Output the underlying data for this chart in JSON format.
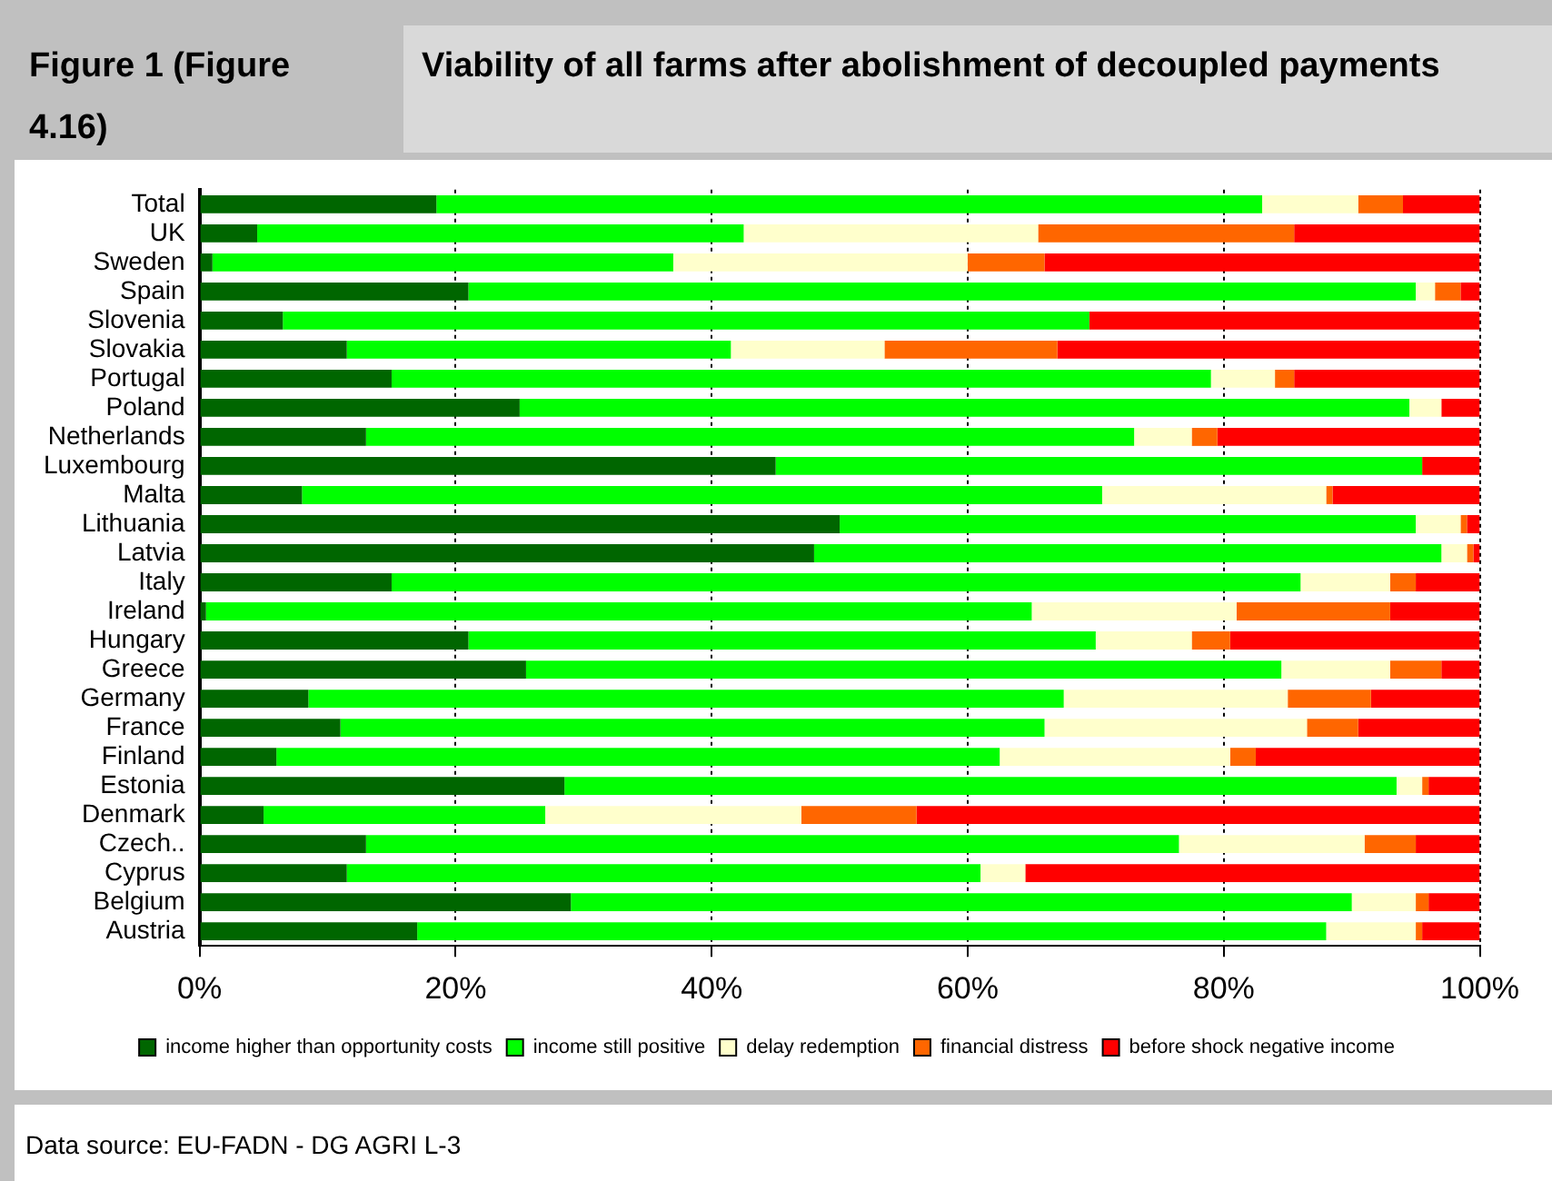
{
  "chart_data": {
    "type": "bar",
    "orientation": "horizontal",
    "stacked": true,
    "title": "Viability of all farms after abolishment of decoupled payments",
    "subtitle": "Figure 1 (Figure 4.16)",
    "annotations": [
      "Data source: EU-FADN - DG AGRI L-3"
    ],
    "categories": [
      "Total",
      "UK",
      "Sweden",
      "Spain",
      "Slovenia",
      "Slovakia",
      "Portugal",
      "Poland",
      "Netherlands",
      "Luxembourg",
      "Malta",
      "Lithuania",
      "Latvia",
      "Italy",
      "Ireland",
      "Hungary",
      "Greece",
      "Germany",
      "France",
      "Finland",
      "Estonia",
      "Denmark",
      "Czech..",
      "Cyprus",
      "Belgium",
      "Austria"
    ],
    "series": [
      {
        "name": "income higher than opportunity costs",
        "color": "#006600",
        "values": [
          18.5,
          4.5,
          1,
          21,
          6.5,
          11.5,
          15,
          25,
          13,
          45,
          8,
          50,
          48,
          15,
          0.5,
          21,
          25.5,
          8.5,
          11,
          6,
          28.5,
          5,
          13,
          11.5,
          29,
          17
        ]
      },
      {
        "name": "income still positive",
        "color": "#00ff00",
        "values": [
          64.5,
          38,
          36,
          74,
          63,
          30,
          64,
          69.5,
          60,
          50.5,
          62.5,
          45,
          49,
          71,
          64.5,
          49,
          59,
          59,
          55,
          56.5,
          65,
          22,
          63.5,
          49.5,
          61,
          71
        ]
      },
      {
        "name": "delay redemption",
        "color": "#ffffcc",
        "values": [
          7.5,
          23,
          23,
          1.5,
          0,
          12,
          5,
          2.5,
          4.5,
          0,
          17.5,
          3.5,
          2,
          7,
          16,
          7.5,
          8.5,
          17.5,
          20.5,
          18,
          2,
          20,
          14.5,
          3.5,
          5,
          7
        ]
      },
      {
        "name": "financial distress",
        "color": "#ff6600",
        "values": [
          3.5,
          20,
          6,
          2,
          0,
          13.5,
          1.5,
          0,
          2,
          0,
          0.5,
          0.5,
          0.5,
          2,
          12,
          3,
          4,
          6.5,
          4,
          2,
          0.5,
          9,
          4,
          0,
          1,
          0.5
        ]
      },
      {
        "name": "before shock negative income",
        "color": "#ff0000",
        "values": [
          6,
          14.5,
          34,
          1.5,
          30.5,
          33,
          14.5,
          3,
          20.5,
          4.5,
          11.5,
          1,
          0.5,
          5,
          7,
          19.5,
          3,
          8.5,
          9.5,
          17.5,
          4,
          44,
          5,
          35.5,
          4,
          4.5
        ]
      }
    ],
    "xlim": [
      0,
      100
    ],
    "xticks": [
      {
        "value": 0,
        "label": "0%"
      },
      {
        "value": 20,
        "label": "20%"
      },
      {
        "value": 40,
        "label": "40%"
      },
      {
        "value": 60,
        "label": "60%"
      },
      {
        "value": 80,
        "label": "80%"
      },
      {
        "value": 100,
        "label": "100%"
      }
    ],
    "grid": "x",
    "legend": "bottom"
  }
}
